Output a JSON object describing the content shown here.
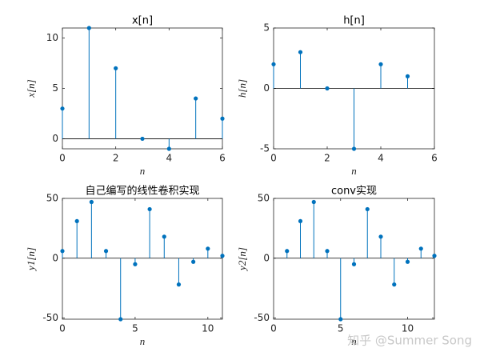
{
  "chart_data": [
    {
      "type": "stem",
      "title": "x[n]",
      "xlabel": "n",
      "ylabel": "x[n]",
      "color": "#0072bd",
      "x": [
        0,
        1,
        2,
        3,
        4,
        5,
        6
      ],
      "values": [
        3,
        11,
        7,
        0,
        -1,
        4,
        2
      ],
      "xlim": [
        0,
        6
      ],
      "xticks": [
        0,
        2,
        4,
        6
      ],
      "ylim": [
        -1,
        11
      ],
      "yticks": [
        0,
        5,
        10
      ]
    },
    {
      "type": "stem",
      "title": "h[n]",
      "xlabel": "n",
      "ylabel": "h[n]",
      "color": "#0072bd",
      "x": [
        0,
        1,
        2,
        3,
        4,
        5
      ],
      "values": [
        2,
        3,
        0,
        -5,
        2,
        1
      ],
      "xlim": [
        0,
        6
      ],
      "xticks": [
        0,
        2,
        4,
        6
      ],
      "ylim": [
        -5,
        5
      ],
      "yticks": [
        -5,
        0,
        5
      ]
    },
    {
      "type": "stem",
      "title": "自己编写的线性卷积实现",
      "xlabel": "n",
      "ylabel": "y1[n]",
      "color": "#0072bd",
      "x": [
        0,
        1,
        2,
        3,
        4,
        5,
        6,
        7,
        8,
        9,
        10,
        11
      ],
      "values": [
        6,
        31,
        47,
        6,
        -51,
        -5,
        41,
        18,
        -22,
        -3,
        8,
        2
      ],
      "xlim": [
        0,
        11
      ],
      "xticks": [
        0,
        5,
        10
      ],
      "ylim": [
        -51,
        50
      ],
      "yticks": [
        -50,
        0,
        50
      ]
    },
    {
      "type": "stem",
      "title": "conv实现",
      "xlabel": "n",
      "ylabel": "y2[n]",
      "color": "#0072bd",
      "x": [
        1,
        2,
        3,
        4,
        5,
        6,
        7,
        8,
        9,
        10,
        11,
        12
      ],
      "values": [
        6,
        31,
        47,
        6,
        -51,
        -5,
        41,
        18,
        -22,
        -3,
        8,
        2
      ],
      "xlim": [
        0,
        12
      ],
      "xticks": [
        0,
        5,
        10
      ],
      "ylim": [
        -51,
        50
      ],
      "yticks": [
        -50,
        0,
        50
      ]
    }
  ],
  "watermark": "知乎 @Summer Song"
}
